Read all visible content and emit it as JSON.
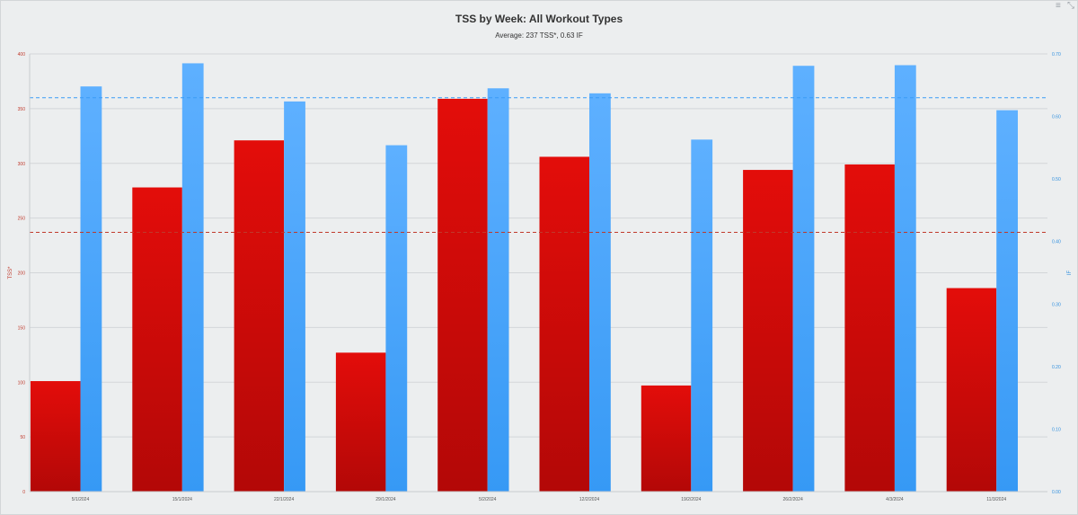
{
  "window": {
    "menu_icon": "hamburger-menu-icon",
    "collapse_icon": "collapse-arrows-icon"
  },
  "chart_data": {
    "type": "bar",
    "title": "TSS by Week: All Workout Types",
    "subtitle": "Average: 237 TSS*, 0.63 IF",
    "categories": [
      "5/1/2024",
      "15/1/2024",
      "22/1/2024",
      "29/1/2024",
      "5/2/2024",
      "12/2/2024",
      "19/2/2024",
      "26/2/2024",
      "4/3/2024",
      "11/3/2024"
    ],
    "series": [
      {
        "name": "TSS*",
        "axis": "left",
        "color": "#dd0a0a",
        "values": [
          101,
          278,
          321,
          127,
          359,
          306,
          97,
          294,
          299,
          186
        ]
      },
      {
        "name": "IF",
        "axis": "right",
        "color": "#3a9bf6",
        "values": [
          0.648,
          0.685,
          0.624,
          0.554,
          0.645,
          0.637,
          0.563,
          0.681,
          0.682,
          0.61
        ]
      }
    ],
    "ylabel_left": "TSS*",
    "ylabel_right": "IF",
    "ylim_left": [
      0,
      400
    ],
    "ylim_right": [
      0,
      0.7
    ],
    "yticks_left": [
      "0",
      "50",
      "100",
      "150",
      "200",
      "250",
      "300",
      "350",
      "400"
    ],
    "yticks_right": [
      "0.00",
      "0.10",
      "0.20",
      "0.30",
      "0.40",
      "0.50",
      "0.60",
      "0.70"
    ],
    "average_lines": [
      {
        "axis": "left",
        "value": 237,
        "color": "#c0392b",
        "style": "dashed"
      },
      {
        "axis": "right",
        "value": 0.63,
        "color": "#3a9bf6",
        "style": "dashed"
      }
    ],
    "grid": true,
    "legend": "none"
  }
}
